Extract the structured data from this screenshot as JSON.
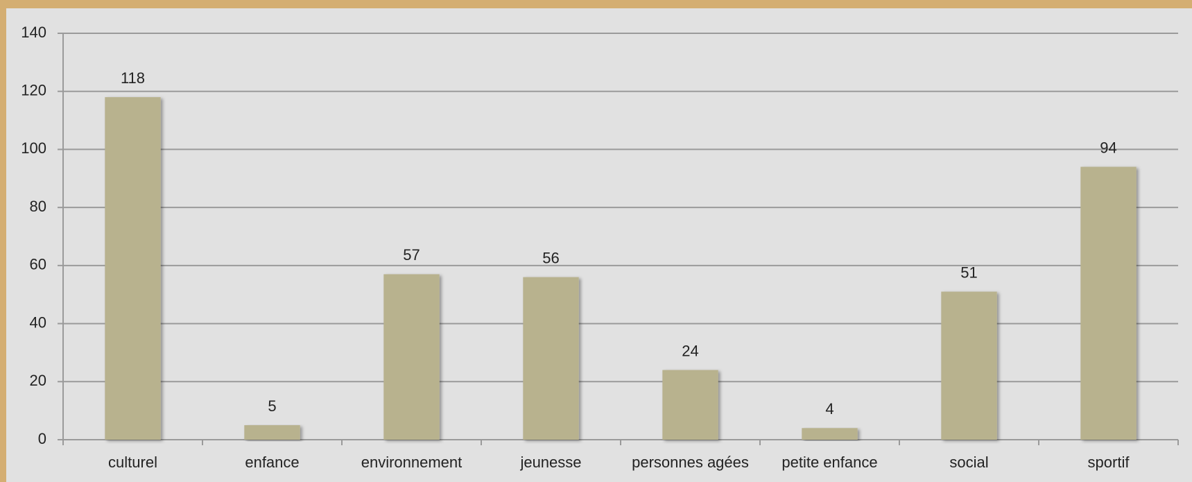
{
  "chart_data": {
    "type": "bar",
    "categories": [
      "culturel",
      "enfance",
      "environnement",
      "jeunesse",
      "personnes agées",
      "petite enfance",
      "social",
      "sportif"
    ],
    "values": [
      118,
      5,
      57,
      56,
      24,
      4,
      51,
      94
    ],
    "color": "#b8b28e",
    "ylim": [
      0,
      140
    ],
    "yticks": [
      0,
      20,
      40,
      60,
      80,
      100,
      120,
      140
    ],
    "grid": true
  }
}
